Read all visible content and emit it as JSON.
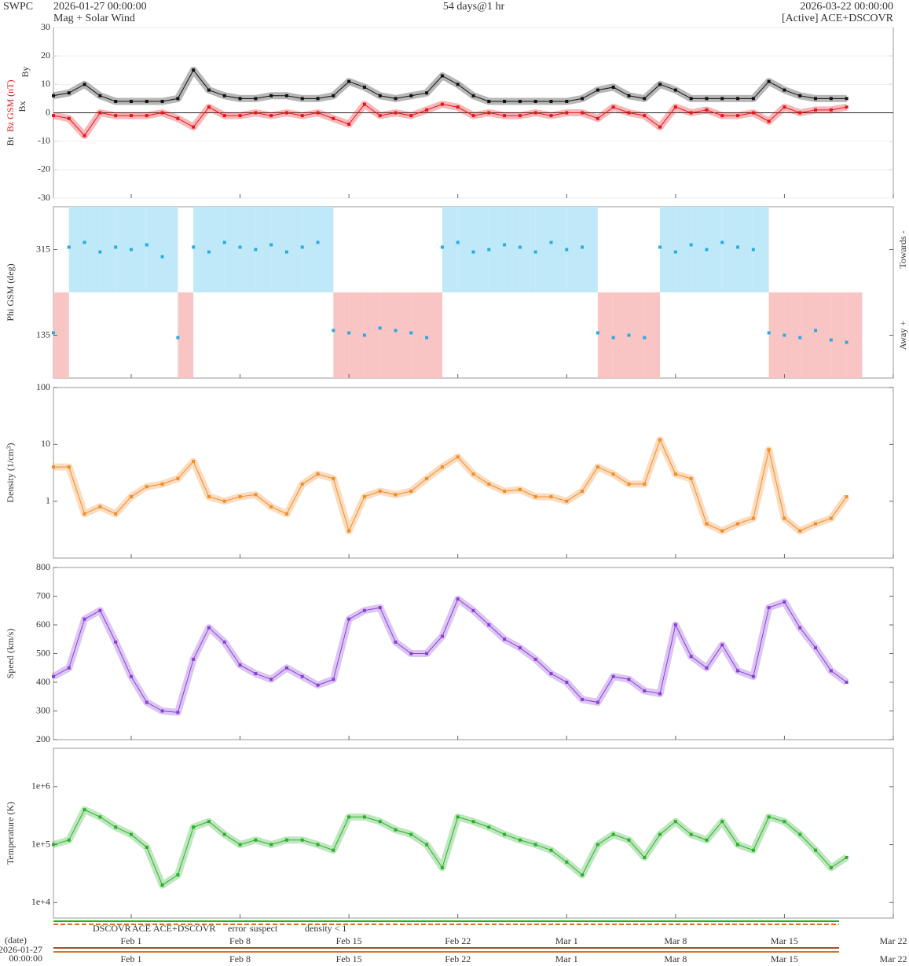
{
  "header": {
    "org": "SWPC",
    "start": "2026-01-27 00:00:00",
    "product": "Mag + Solar Wind",
    "span": "54 days@1 hr",
    "end": "2026-03-22 00:00:00",
    "source": "[Active] ACE+DSCOVR"
  },
  "chart_data": [
    {
      "type": "line",
      "ylabel": "Bz GSM (nT)",
      "annotations": [
        "Bx",
        "By"
      ],
      "annotation_colors": [
        "#8a3fd8",
        "#29abe2"
      ],
      "x": [
        "2026-01-27",
        "2026-01-28",
        "2026-01-29",
        "2026-01-30",
        "2026-01-31",
        "2026-02-01",
        "2026-02-02",
        "2026-02-03",
        "2026-02-04",
        "2026-02-05",
        "2026-02-06",
        "2026-02-07",
        "2026-02-08",
        "2026-02-09",
        "2026-02-10",
        "2026-02-11",
        "2026-02-12",
        "2026-02-13",
        "2026-02-14",
        "2026-02-15",
        "2026-02-16",
        "2026-02-17",
        "2026-02-18",
        "2026-02-19",
        "2026-02-20",
        "2026-02-21",
        "2026-02-22",
        "2026-02-23",
        "2026-02-24",
        "2026-02-25",
        "2026-02-26",
        "2026-02-27",
        "2026-02-28",
        "2026-03-01",
        "2026-03-02",
        "2026-03-03",
        "2026-03-04",
        "2026-03-05",
        "2026-03-06",
        "2026-03-07",
        "2026-03-08",
        "2026-03-09",
        "2026-03-10",
        "2026-03-11",
        "2026-03-12",
        "2026-03-13",
        "2026-03-14",
        "2026-03-15",
        "2026-03-16",
        "2026-03-17",
        "2026-03-18",
        "2026-03-19"
      ],
      "xlim": [
        "2026-01-27 00:00:00",
        "2026-03-22 00:00:00"
      ],
      "xticks": [
        {
          "value": "2026-02-01",
          "label": "Feb 1"
        },
        {
          "value": "2026-02-08",
          "label": "Feb 8"
        },
        {
          "value": "2026-02-15",
          "label": "Feb 15"
        },
        {
          "value": "2026-02-22",
          "label": "Feb 22"
        },
        {
          "value": "2026-03-01",
          "label": "Mar 1"
        },
        {
          "value": "2026-03-08",
          "label": "Mar 8"
        },
        {
          "value": "2026-03-15",
          "label": "Mar 15"
        },
        {
          "value": "2026-03-22",
          "label": "Mar 22"
        }
      ],
      "ylim": [
        -30,
        30
      ],
      "yticks": [
        -30,
        -20,
        -10,
        0,
        10,
        20,
        30
      ],
      "grid": true,
      "log": false,
      "series": [
        {
          "name": "Bt",
          "color": "#111111",
          "values": [
            6,
            7,
            10,
            6,
            4,
            4,
            4,
            4,
            5,
            15,
            8,
            6,
            5,
            5,
            6,
            6,
            5,
            5,
            6,
            11,
            9,
            6,
            5,
            6,
            7,
            13,
            10,
            6,
            4,
            4,
            4,
            4,
            4,
            4,
            5,
            8,
            9,
            6,
            5,
            10,
            8,
            5,
            5,
            5,
            5,
            5,
            11,
            8,
            6,
            5,
            5,
            5
          ]
        },
        {
          "name": "Bz",
          "color": "#e8141b",
          "values": [
            -1,
            -2,
            -8,
            0,
            -1,
            -1,
            -1,
            0,
            -2,
            -5,
            2,
            -1,
            -1,
            0,
            -1,
            0,
            -1,
            0,
            -2,
            -4,
            3,
            -1,
            0,
            -1,
            1,
            3,
            2,
            -1,
            0,
            -1,
            -1,
            0,
            -1,
            0,
            0,
            -2,
            2,
            0,
            -1,
            -5,
            2,
            0,
            1,
            -1,
            -1,
            0,
            -3,
            2,
            0,
            1,
            1,
            2
          ]
        }
      ]
    },
    {
      "type": "scatter",
      "ylabel": "Phi GSM (deg)",
      "side_labels": [
        "Towards -",
        "Away +"
      ],
      "band_colors": [
        "#bfe9f8",
        "#f9c4c4"
      ],
      "x": [
        "2026-01-27",
        "2026-01-28",
        "2026-01-29",
        "2026-01-30",
        "2026-01-31",
        "2026-02-01",
        "2026-02-02",
        "2026-02-03",
        "2026-02-04",
        "2026-02-05",
        "2026-02-06",
        "2026-02-07",
        "2026-02-08",
        "2026-02-09",
        "2026-02-10",
        "2026-02-11",
        "2026-02-12",
        "2026-02-13",
        "2026-02-14",
        "2026-02-15",
        "2026-02-16",
        "2026-02-17",
        "2026-02-18",
        "2026-02-19",
        "2026-02-20",
        "2026-02-21",
        "2026-02-22",
        "2026-02-23",
        "2026-02-24",
        "2026-02-25",
        "2026-02-26",
        "2026-02-27",
        "2026-02-28",
        "2026-03-01",
        "2026-03-02",
        "2026-03-03",
        "2026-03-04",
        "2026-03-05",
        "2026-03-06",
        "2026-03-07",
        "2026-03-08",
        "2026-03-09",
        "2026-03-10",
        "2026-03-11",
        "2026-03-12",
        "2026-03-13",
        "2026-03-14",
        "2026-03-15",
        "2026-03-16",
        "2026-03-17",
        "2026-03-18",
        "2026-03-19"
      ],
      "xlim": [
        "2026-01-27 00:00:00",
        "2026-03-22 00:00:00"
      ],
      "ylim": [
        45,
        405
      ],
      "yticks": [
        135,
        315
      ],
      "grid": false,
      "log": false,
      "series": [
        {
          "name": "Phi",
          "color": "#29abe2",
          "values": [
            140,
            320,
            330,
            310,
            320,
            315,
            325,
            300,
            130,
            320,
            310,
            330,
            320,
            315,
            325,
            310,
            320,
            330,
            145,
            140,
            135,
            150,
            145,
            140,
            130,
            320,
            330,
            310,
            315,
            325,
            320,
            310,
            330,
            315,
            320,
            140,
            130,
            135,
            130,
            320,
            310,
            325,
            315,
            330,
            320,
            315,
            140,
            135,
            130,
            145,
            125,
            120
          ]
        }
      ]
    },
    {
      "type": "line",
      "ylabel": "Density (1/cm³)",
      "x": [
        "2026-01-27",
        "2026-01-28",
        "2026-01-29",
        "2026-01-30",
        "2026-01-31",
        "2026-02-01",
        "2026-02-02",
        "2026-02-03",
        "2026-02-04",
        "2026-02-05",
        "2026-02-06",
        "2026-02-07",
        "2026-02-08",
        "2026-02-09",
        "2026-02-10",
        "2026-02-11",
        "2026-02-12",
        "2026-02-13",
        "2026-02-14",
        "2026-02-15",
        "2026-02-16",
        "2026-02-17",
        "2026-02-18",
        "2026-02-19",
        "2026-02-20",
        "2026-02-21",
        "2026-02-22",
        "2026-02-23",
        "2026-02-24",
        "2026-02-25",
        "2026-02-26",
        "2026-02-27",
        "2026-02-28",
        "2026-03-01",
        "2026-03-02",
        "2026-03-03",
        "2026-03-04",
        "2026-03-05",
        "2026-03-06",
        "2026-03-07",
        "2026-03-08",
        "2026-03-09",
        "2026-03-10",
        "2026-03-11",
        "2026-03-12",
        "2026-03-13",
        "2026-03-14",
        "2026-03-15",
        "2026-03-16",
        "2026-03-17",
        "2026-03-18",
        "2026-03-19"
      ],
      "xlim": [
        "2026-01-27 00:00:00",
        "2026-03-22 00:00:00"
      ],
      "ylim": [
        0.1,
        100
      ],
      "yticks": [
        1,
        10,
        100
      ],
      "grid": false,
      "log": true,
      "series": [
        {
          "name": "Density",
          "color": "#f28c28",
          "values": [
            4,
            4,
            0.6,
            0.8,
            0.6,
            1.2,
            1.8,
            2,
            2.5,
            5,
            1.2,
            1,
            1.2,
            1.3,
            0.8,
            0.6,
            2,
            3,
            2.5,
            0.3,
            1.2,
            1.5,
            1.3,
            1.5,
            2.5,
            4,
            6,
            3,
            2,
            1.5,
            1.6,
            1.2,
            1.2,
            1,
            1.5,
            4,
            3,
            2,
            2,
            12,
            3,
            2.5,
            0.4,
            0.3,
            0.4,
            0.5,
            8,
            0.5,
            0.3,
            0.4,
            0.5,
            1.2
          ]
        }
      ]
    },
    {
      "type": "line",
      "ylabel": "Speed (km/s)",
      "x": [
        "2026-01-27",
        "2026-01-28",
        "2026-01-29",
        "2026-01-30",
        "2026-01-31",
        "2026-02-01",
        "2026-02-02",
        "2026-02-03",
        "2026-02-04",
        "2026-02-05",
        "2026-02-06",
        "2026-02-07",
        "2026-02-08",
        "2026-02-09",
        "2026-02-10",
        "2026-02-11",
        "2026-02-12",
        "2026-02-13",
        "2026-02-14",
        "2026-02-15",
        "2026-02-16",
        "2026-02-17",
        "2026-02-18",
        "2026-02-19",
        "2026-02-20",
        "2026-02-21",
        "2026-02-22",
        "2026-02-23",
        "2026-02-24",
        "2026-02-25",
        "2026-02-26",
        "2026-02-27",
        "2026-02-28",
        "2026-03-01",
        "2026-03-02",
        "2026-03-03",
        "2026-03-04",
        "2026-03-05",
        "2026-03-06",
        "2026-03-07",
        "2026-03-08",
        "2026-03-09",
        "2026-03-10",
        "2026-03-11",
        "2026-03-12",
        "2026-03-13",
        "2026-03-14",
        "2026-03-15",
        "2026-03-16",
        "2026-03-17",
        "2026-03-18",
        "2026-03-19"
      ],
      "xlim": [
        "2026-01-27 00:00:00",
        "2026-03-22 00:00:00"
      ],
      "ylim": [
        200,
        800
      ],
      "yticks": [
        200,
        300,
        400,
        500,
        600,
        700,
        800
      ],
      "grid": false,
      "log": false,
      "series": [
        {
          "name": "Speed",
          "color": "#8a3fd8",
          "values": [
            420,
            450,
            620,
            650,
            540,
            420,
            330,
            300,
            295,
            480,
            590,
            540,
            460,
            430,
            410,
            450,
            420,
            390,
            410,
            620,
            650,
            660,
            540,
            500,
            500,
            560,
            690,
            650,
            600,
            550,
            520,
            480,
            430,
            400,
            340,
            330,
            420,
            410,
            370,
            360,
            600,
            490,
            450,
            530,
            440,
            420,
            660,
            680,
            590,
            520,
            440,
            400
          ]
        }
      ]
    },
    {
      "type": "line",
      "ylabel": "Temperature (K)",
      "x": [
        "2026-01-27",
        "2026-01-28",
        "2026-01-29",
        "2026-01-30",
        "2026-01-31",
        "2026-02-01",
        "2026-02-02",
        "2026-02-03",
        "2026-02-04",
        "2026-02-05",
        "2026-02-06",
        "2026-02-07",
        "2026-02-08",
        "2026-02-09",
        "2026-02-10",
        "2026-02-11",
        "2026-02-12",
        "2026-02-13",
        "2026-02-14",
        "2026-02-15",
        "2026-02-16",
        "2026-02-17",
        "2026-02-18",
        "2026-02-19",
        "2026-02-20",
        "2026-02-21",
        "2026-02-22",
        "2026-02-23",
        "2026-02-24",
        "2026-02-25",
        "2026-02-26",
        "2026-02-27",
        "2026-02-28",
        "2026-03-01",
        "2026-03-02",
        "2026-03-03",
        "2026-03-04",
        "2026-03-05",
        "2026-03-06",
        "2026-03-07",
        "2026-03-08",
        "2026-03-09",
        "2026-03-10",
        "2026-03-11",
        "2026-03-12",
        "2026-03-13",
        "2026-03-14",
        "2026-03-15",
        "2026-03-16",
        "2026-03-17",
        "2026-03-18",
        "2026-03-19"
      ],
      "xlim": [
        "2026-01-27 00:00:00",
        "2026-03-22 00:00:00"
      ],
      "ylim": [
        5400,
        4600000
      ],
      "yticks": [
        {
          "value": 10000,
          "label": "1e+4"
        },
        {
          "value": 100000,
          "label": "1e+5"
        },
        {
          "value": 1000000,
          "label": "1e+6"
        }
      ],
      "grid": false,
      "log": true,
      "series": [
        {
          "name": "Temperature",
          "color": "#2ab02a",
          "values": [
            100000,
            120000,
            400000,
            300000,
            200000,
            150000,
            90000,
            20000,
            30000,
            200000,
            250000,
            150000,
            100000,
            120000,
            100000,
            120000,
            120000,
            100000,
            80000,
            300000,
            300000,
            250000,
            180000,
            150000,
            100000,
            40000,
            300000,
            250000,
            200000,
            150000,
            120000,
            100000,
            80000,
            50000,
            30000,
            100000,
            150000,
            120000,
            60000,
            150000,
            250000,
            150000,
            120000,
            250000,
            100000,
            80000,
            300000,
            250000,
            150000,
            80000,
            40000,
            60000
          ]
        }
      ]
    }
  ],
  "sources": {
    "items": [
      {
        "name": "DSCOVR",
        "color": "#1a1aff"
      },
      {
        "name": "ACE",
        "color": "#22b022"
      },
      {
        "name": "ACE+DSCOVR",
        "color": "#e020e0"
      },
      {
        "name": "error",
        "color": "#e01010"
      },
      {
        "name": "suspect",
        "color": "#f0a000"
      },
      {
        "name": "density < 1",
        "color": "#e07020"
      }
    ]
  },
  "footer": {
    "label": "(date)",
    "start": [
      "2026-01-27",
      "00:00:00"
    ]
  }
}
